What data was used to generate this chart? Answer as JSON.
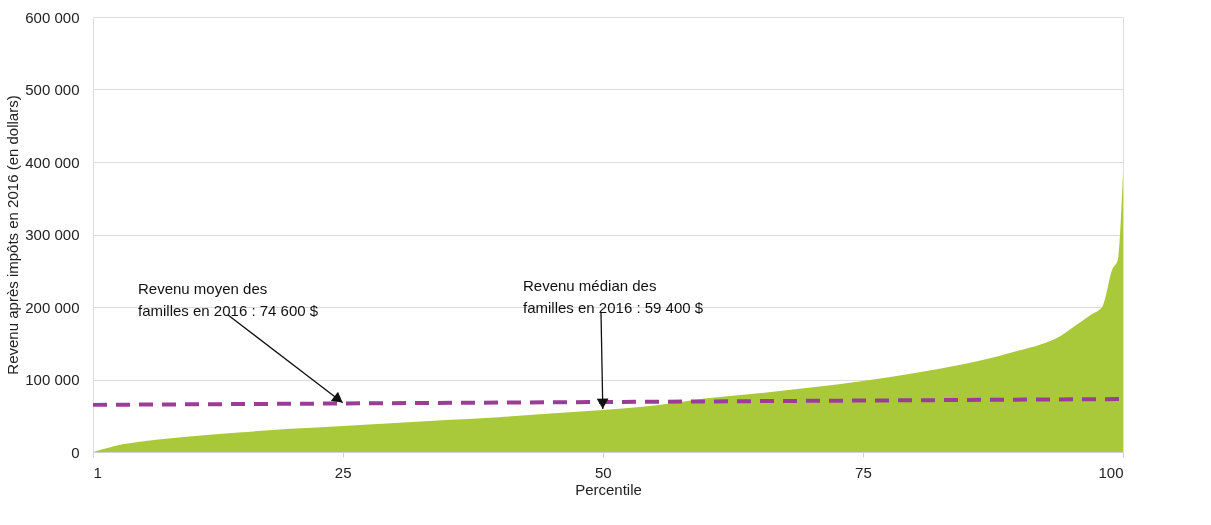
{
  "chart_data": {
    "type": "area",
    "xlabel": "Percentile",
    "ylabel": "Revenu après impôts en 2016 (en dollars)",
    "x": [
      1,
      2,
      3,
      5,
      10,
      15,
      20,
      25,
      30,
      35,
      40,
      45,
      50,
      55,
      60,
      65,
      70,
      75,
      80,
      85,
      88,
      90,
      92,
      94,
      95,
      96,
      97,
      98,
      99,
      99.5,
      100
    ],
    "series": [
      {
        "color": "#a9c93a",
        "values": [
          0,
          4000,
          8000,
          13000,
          21000,
          27000,
          32000,
          36000,
          40000,
          44000,
          48000,
          53000,
          58000,
          64000,
          74000,
          81000,
          89000,
          98000,
          109000,
          122000,
          132000,
          140000,
          148000,
          160000,
          170000,
          180000,
          190000,
          200000,
          253000,
          265000,
          385000
        ]
      },
      {
        "type": "line",
        "color": "#9b3c96",
        "line_style": "dashed",
        "x": [
          1,
          100
        ],
        "values": [
          65000,
          73000
        ]
      }
    ],
    "annotations": [
      {
        "text": "Revenu moyen des\nfamilles en 2016 : 74 600 $",
        "x": 25,
        "y": 68000
      },
      {
        "text": "Revenu médian des\nfamilles en 2016 : 59 400 $",
        "x": 50,
        "y": 59400
      }
    ],
    "xlim": [
      1,
      100
    ],
    "xticks": [
      1,
      25,
      50,
      75,
      100
    ],
    "ylim": [
      0,
      600000
    ],
    "yticks": [
      0,
      {
        "value": 100000,
        "label": "100 000"
      },
      {
        "value": 200000,
        "label": "200 000"
      },
      {
        "value": 300000,
        "label": "300 000"
      },
      {
        "value": 400000,
        "label": "400 000"
      },
      {
        "value": 500000,
        "label": "500 000"
      },
      {
        "value": 600000,
        "label": "600 000"
      }
    ],
    "grid": "y"
  }
}
